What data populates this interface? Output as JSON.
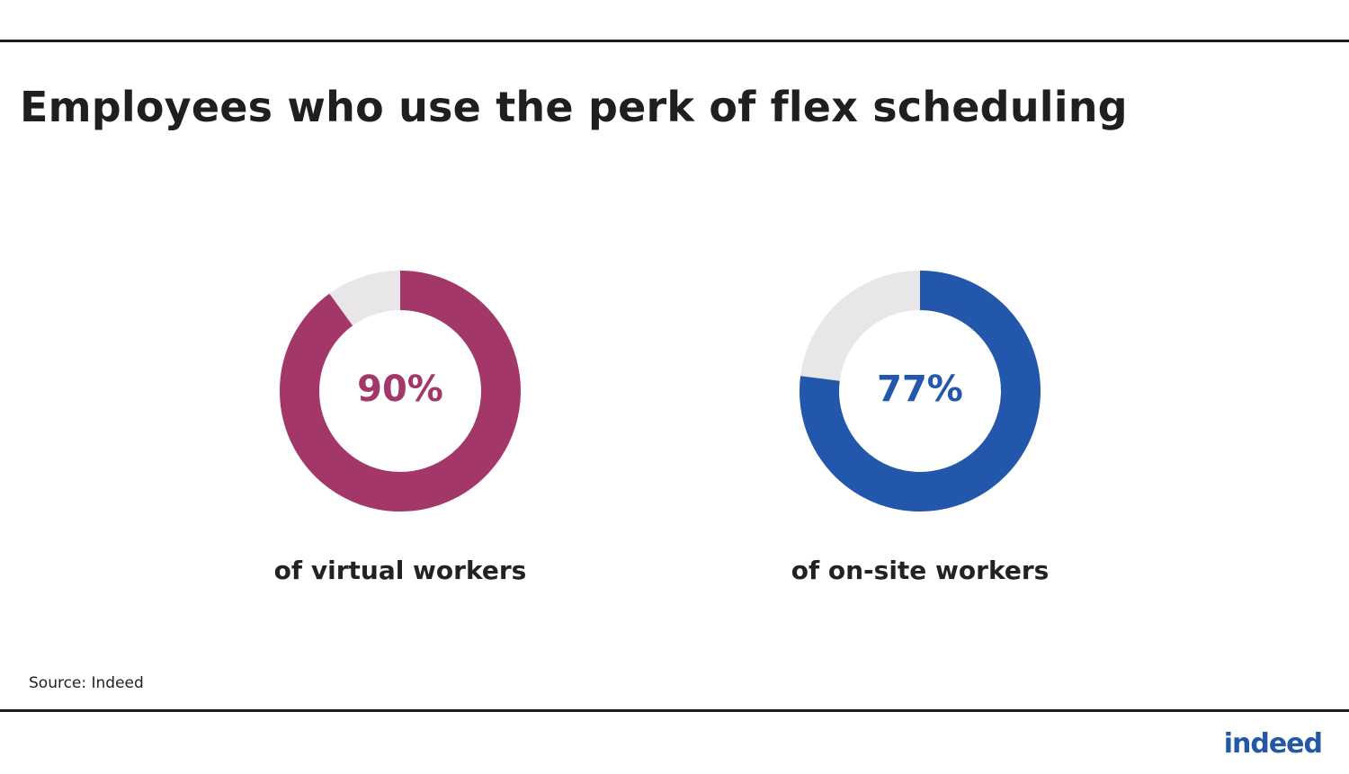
{
  "title": "Employees who use the perk of flex scheduling",
  "source": "Source: Indeed",
  "logo_text": "indeed",
  "colors": {
    "track": "#e8e6e8",
    "virtual": "#a3376a",
    "onsite": "#2257ab",
    "text": "#222222"
  },
  "chart_data": [
    {
      "type": "pie",
      "style": "donut",
      "value_label": "90%",
      "value": 90,
      "max": 100,
      "label": "of virtual workers",
      "color": "#a3376a"
    },
    {
      "type": "pie",
      "style": "donut",
      "value_label": "77%",
      "value": 77,
      "max": 100,
      "label": "of on-site workers",
      "color": "#2257ab"
    }
  ]
}
